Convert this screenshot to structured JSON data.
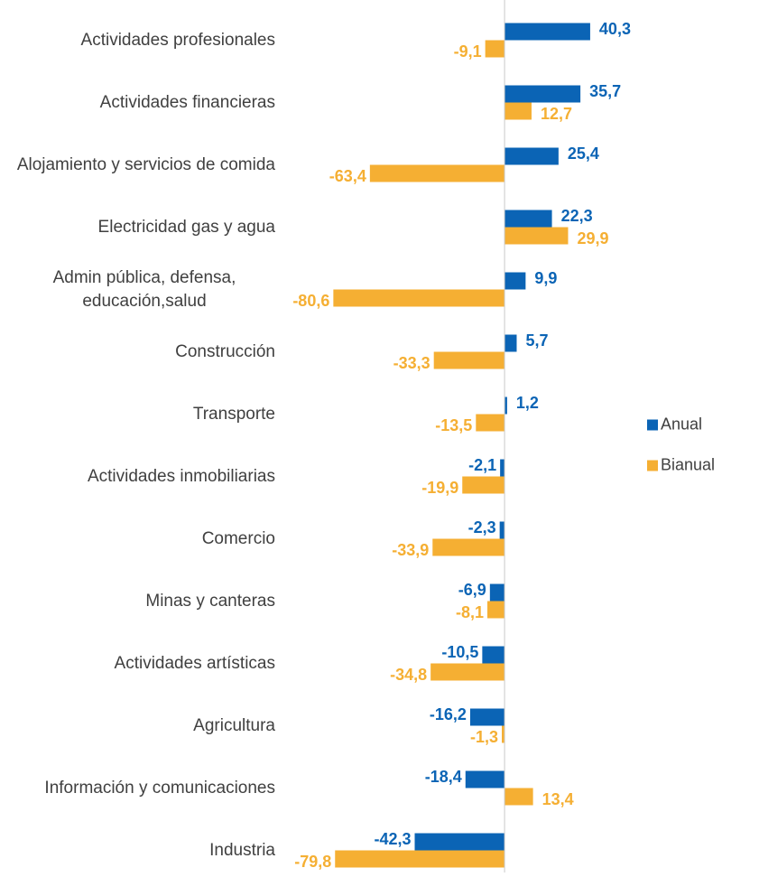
{
  "chart_data": {
    "type": "barh",
    "categories": [
      "Actividades profesionales",
      "Actividades financieras",
      "Alojamiento y servicios de comida",
      "Electricidad gas y agua",
      "Admin pública, defensa, educación,salud",
      "Construcción",
      "Transporte",
      "Actividades inmobiliarias",
      "Comercio",
      "Minas y canteras",
      "Actividades artísticas",
      "Agricultura",
      "Información y comunicaciones",
      "Industria"
    ],
    "series": [
      {
        "name": "Anual",
        "color": "#0b64b5",
        "values": [
          40.3,
          35.7,
          25.4,
          22.3,
          9.9,
          5.7,
          1.2,
          -2.1,
          -2.3,
          -6.9,
          -10.5,
          -16.2,
          -18.4,
          -42.3
        ],
        "value_labels": [
          "40,3",
          "35,7",
          "25,4",
          "22,3",
          "9,9",
          "5,7",
          "1,2",
          "-2,1",
          "-2,3",
          "-6,9",
          "-10,5",
          "-16,2",
          "-18,4",
          "-42,3"
        ]
      },
      {
        "name": "Bianual",
        "color": "#f5af33",
        "values": [
          -9.1,
          12.7,
          -63.4,
          29.9,
          -80.6,
          -33.3,
          -13.5,
          -19.9,
          -33.9,
          -8.1,
          -34.8,
          -1.3,
          13.4,
          -79.8
        ],
        "value_labels": [
          "-9,1",
          "12,7",
          "-63,4",
          "29,9",
          "-80,6",
          "-33,3",
          "-13,5",
          "-19,9",
          "-33,9",
          "-8,1",
          "-34,8",
          "-1,3",
          "13,4",
          "-79,8"
        ]
      }
    ],
    "xlim": [
      -85,
      45
    ],
    "legend": "right"
  }
}
